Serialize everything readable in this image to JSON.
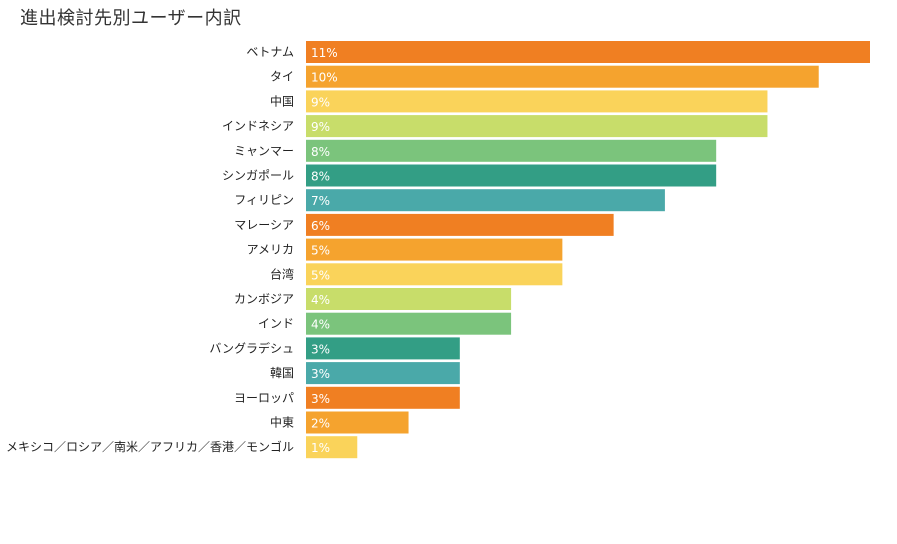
{
  "chart_data": {
    "type": "bar",
    "orientation": "horizontal",
    "title": "進出検討先別ユーザー内訳",
    "categories": [
      "ベトナム",
      "タイ",
      "中国",
      "インドネシア",
      "ミャンマー",
      "シンガポール",
      "フィリピン",
      "マレーシア",
      "アメリカ",
      "台湾",
      "カンボジア",
      "インド",
      "バングラデシュ",
      "韓国",
      "ヨーロッパ",
      "中東",
      "メキシコ／ロシア／南米／アフリカ／香港／モンゴル"
    ],
    "values": [
      11,
      10,
      9,
      9,
      8,
      8,
      7,
      6,
      5,
      5,
      4,
      4,
      3,
      3,
      3,
      2,
      1
    ],
    "value_labels": [
      "11%",
      "10%",
      "9%",
      "9%",
      "8%",
      "8%",
      "7%",
      "6%",
      "5%",
      "5%",
      "4%",
      "4%",
      "3%",
      "3%",
      "3%",
      "2%",
      "1%"
    ],
    "unit": "%",
    "xlim": [
      0,
      11
    ],
    "grid": false,
    "legend": "none",
    "colors": [
      "#f07f22",
      "#f5a32e",
      "#fad35a",
      "#c8dd6a",
      "#7bc47c",
      "#339e85",
      "#4aa9a9",
      "#f07f22",
      "#f5a32e",
      "#fad35a",
      "#c8dd6a",
      "#7bc47c",
      "#339e85",
      "#4aa9a9",
      "#f07f22",
      "#f5a32e",
      "#fad35a"
    ]
  }
}
